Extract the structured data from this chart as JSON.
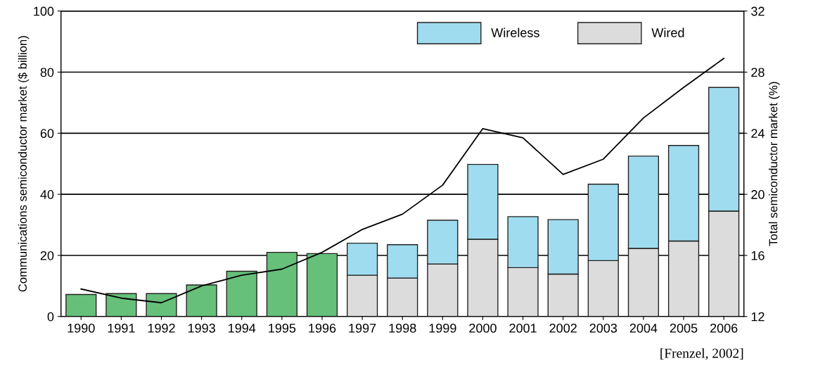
{
  "chart_data": {
    "type": "bar",
    "stacked": true,
    "ylabel": "Communications semiconductor market ($ billion)",
    "y2label": "Total semiconductor market (%)",
    "categories": [
      "1990",
      "1991",
      "1992",
      "1993",
      "1994",
      "1995",
      "1996",
      "1997",
      "1998",
      "1999",
      "2000",
      "2001",
      "2002",
      "2003",
      "2004",
      "2005",
      "2006"
    ],
    "series": [
      {
        "color": "#66c07a",
        "values": [
          7.2,
          7.5,
          7.5,
          10.3,
          14.8,
          21,
          20.6,
          null,
          null,
          null,
          null,
          null,
          null,
          null,
          null,
          null,
          null
        ]
      },
      {
        "name": "Wired",
        "color": "#dcdcdc",
        "values": [
          null,
          null,
          null,
          null,
          null,
          null,
          null,
          13.5,
          12.6,
          17.2,
          25.3,
          16,
          13.9,
          18.3,
          22.3,
          24.7,
          34.5
        ]
      },
      {
        "name": "Wireless",
        "color": "#a0dcef",
        "values": [
          null,
          null,
          null,
          null,
          null,
          null,
          null,
          10.5,
          10.9,
          14.3,
          24.5,
          16.7,
          17.8,
          25,
          30.2,
          31.3,
          40.5
        ]
      },
      {
        "type": "line",
        "axis": "y2",
        "color": "#000000",
        "values": [
          13.8,
          13.2,
          12.9,
          14.0,
          14.7,
          15.1,
          16.2,
          17.7,
          18.7,
          20.6,
          24.3,
          23.7,
          21.3,
          22.3,
          25.0,
          27.0,
          28.9
        ]
      }
    ],
    "ylim": [
      0,
      100
    ],
    "yticks": [
      0,
      20,
      40,
      60,
      80,
      100
    ],
    "y2lim": [
      12,
      32
    ],
    "y2ticks": [
      12,
      16,
      20,
      24,
      28,
      32
    ],
    "grid": "y",
    "legend": "top right",
    "annotations": [
      "[Frenzel, 2002]"
    ]
  }
}
